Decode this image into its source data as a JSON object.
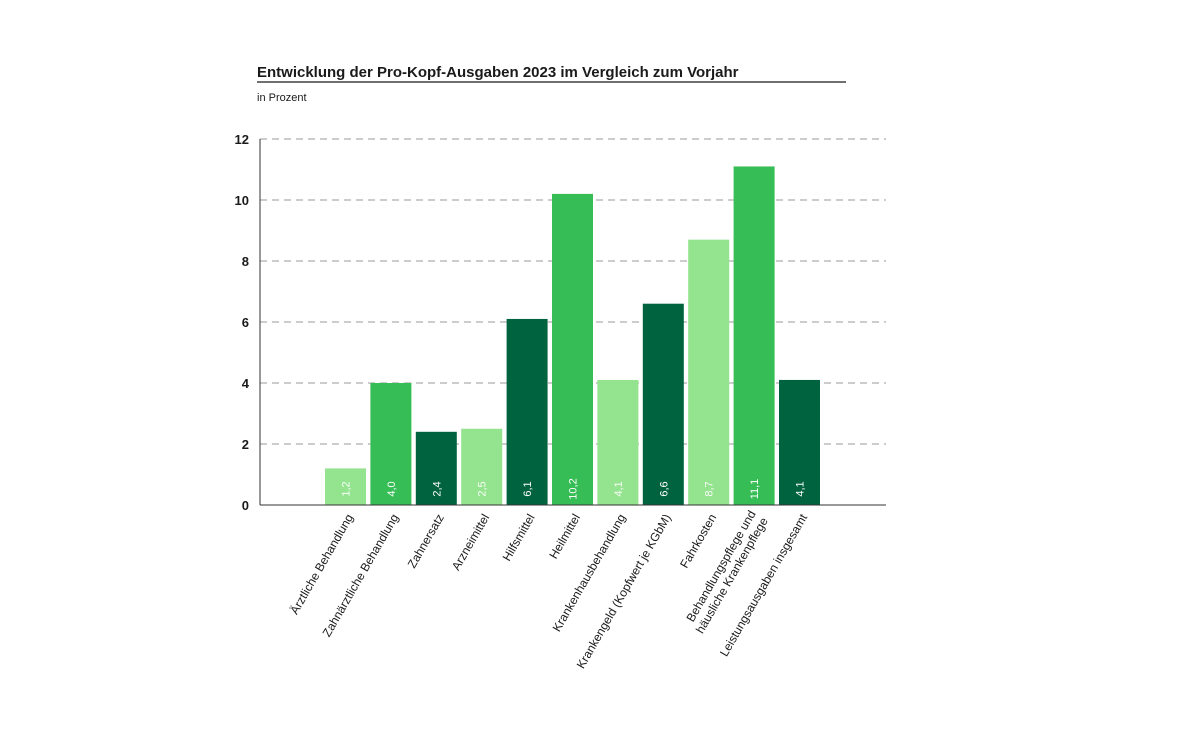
{
  "chart_data": {
    "type": "bar",
    "title": "Entwicklung der Pro-Kopf-Ausgaben 2023 im Vergleich zum Vorjahr",
    "subtitle": "in Prozent",
    "xlabel": "",
    "ylabel": "",
    "ylim": [
      0,
      12
    ],
    "yticks": [
      0,
      2,
      4,
      6,
      8,
      10,
      12
    ],
    "grid": true,
    "legend": "none",
    "categories": [
      [
        "Ärztliche Behandlung"
      ],
      [
        "Zahnärztliche Behandlung"
      ],
      [
        "Zahnersatz"
      ],
      [
        "Arzneimittel"
      ],
      [
        "Hilfsmittel"
      ],
      [
        "Heilmittel"
      ],
      [
        "Krankenhausbehandlung"
      ],
      [
        "Krankengeld (Kopfwert je KGbM)"
      ],
      [
        "Fahrkosten"
      ],
      [
        "Behandlungspflege und",
        "häusliche Krankenpflege"
      ],
      [
        "Leistungsausgaben insgesamt"
      ]
    ],
    "values": [
      1.2,
      4.0,
      2.4,
      2.5,
      6.1,
      10.2,
      4.1,
      6.6,
      8.7,
      11.1,
      4.1
    ],
    "value_labels": [
      "1,2",
      "4,0",
      "2,4",
      "2,5",
      "6,1",
      "10,2",
      "4,1",
      "6,6",
      "8,7",
      "11,1",
      "4,1"
    ],
    "bar_colors": [
      "#94e38f",
      "#36bd55",
      "#006340",
      "#94e38f",
      "#006340",
      "#36bd55",
      "#94e38f",
      "#006340",
      "#94e38f",
      "#36bd55",
      "#006340"
    ],
    "colors": {
      "light_green": "#94e38f",
      "mid_green": "#36bd55",
      "dark_green": "#006340",
      "grid": "#9a9a9a",
      "axis": "#333333",
      "text": "#1a1a1a"
    }
  }
}
